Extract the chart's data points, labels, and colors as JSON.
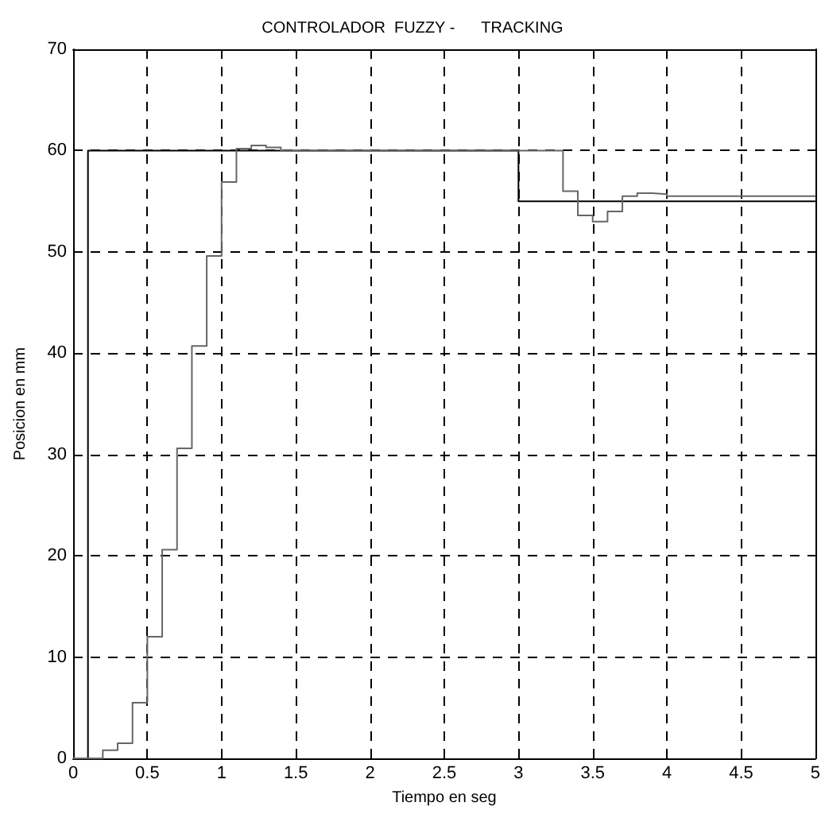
{
  "chart_data": {
    "type": "step",
    "title": "CONTROLADOR  FUZZY -      TRACKING",
    "xlabel": "Tiempo en seg",
    "ylabel": "Posicion en mm",
    "xlim": [
      0,
      5
    ],
    "ylim": [
      0,
      70
    ],
    "xticks": [
      0,
      0.5,
      1,
      1.5,
      2,
      2.5,
      3,
      3.5,
      4,
      4.5,
      5
    ],
    "yticks": [
      0,
      10,
      20,
      30,
      40,
      50,
      60,
      70
    ],
    "grid": true,
    "line_style": "solid",
    "marker": "none",
    "series": [
      {
        "color": "#000000",
        "x": [
          0,
          0.1,
          3,
          5
        ],
        "values": [
          0,
          60,
          55,
          55
        ]
      },
      {
        "color": "#666666",
        "x": [
          0,
          0.2,
          0.3,
          0.4,
          0.5,
          0.6,
          0.7,
          0.8,
          0.9,
          1.0,
          1.1,
          1.2,
          1.3,
          1.4,
          3.3,
          3.4,
          3.5,
          3.6,
          3.7,
          3.8,
          3.9,
          4.0,
          5
        ],
        "values": [
          0,
          0.8,
          1.5,
          5.5,
          12,
          20.6,
          30.6,
          40.7,
          49.6,
          56.9,
          60.2,
          60.5,
          60.3,
          60,
          56,
          53.6,
          53,
          54,
          55.5,
          55.8,
          55.7,
          55.5,
          55.5
        ]
      }
    ]
  }
}
